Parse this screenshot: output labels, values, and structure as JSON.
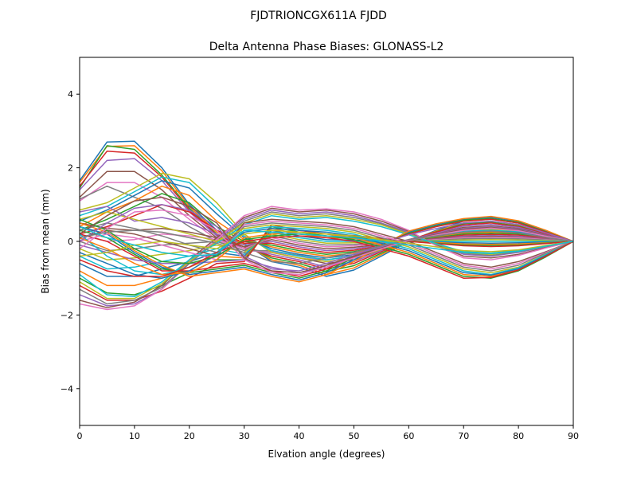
{
  "suptitle": "FJDTRIONCGX611A FJDD",
  "chart_data": {
    "type": "line",
    "title": "Delta Antenna Phase Biases: GLONASS-L2",
    "xlabel": "Elvation angle (degrees)",
    "ylabel": "Bias from mean (mm)",
    "xlim": [
      0,
      90
    ],
    "ylim": [
      -5,
      5
    ],
    "xticks": [
      0,
      10,
      20,
      30,
      40,
      50,
      60,
      70,
      80,
      90
    ],
    "yticks": [
      -4,
      -2,
      0,
      2,
      4
    ],
    "ytick_labels": [
      "−4",
      "−2",
      "0",
      "2",
      "4"
    ],
    "grid": false,
    "x": [
      0,
      5,
      10,
      15,
      20,
      25,
      30,
      35,
      40,
      45,
      50,
      55,
      60,
      65,
      70,
      75,
      80,
      85,
      90
    ],
    "colors": [
      "#1f77b4",
      "#ff7f0e",
      "#2ca02c",
      "#d62728",
      "#9467bd",
      "#8c564b",
      "#e377c2",
      "#7f7f7f",
      "#bcbd22",
      "#17becf"
    ],
    "series": [
      {
        "values": [
          1.65,
          2.7,
          2.72,
          2.0,
          1.0,
          0.3,
          -0.05,
          -0.55,
          -0.7,
          -0.95,
          -0.78,
          -0.4,
          0.0,
          0.3,
          0.55,
          0.6,
          0.5,
          0.25,
          0
        ]
      },
      {
        "values": [
          1.6,
          2.58,
          2.6,
          1.92,
          0.95,
          0.25,
          -0.08,
          -0.5,
          -0.65,
          -0.9,
          -0.72,
          -0.36,
          0.02,
          0.28,
          0.5,
          0.55,
          0.45,
          0.22,
          0
        ]
      },
      {
        "values": [
          1.45,
          2.6,
          2.5,
          1.8,
          0.9,
          0.2,
          -0.1,
          -0.45,
          -0.6,
          -0.82,
          -0.66,
          -0.32,
          0.03,
          0.26,
          0.48,
          0.52,
          0.42,
          0.2,
          0
        ]
      },
      {
        "values": [
          1.5,
          2.45,
          2.4,
          1.75,
          0.85,
          0.18,
          -0.15,
          -0.4,
          -0.55,
          -0.75,
          -0.6,
          -0.28,
          0.05,
          0.25,
          0.45,
          0.5,
          0.4,
          0.2,
          0
        ]
      },
      {
        "values": [
          1.4,
          2.2,
          2.25,
          1.65,
          0.8,
          0.15,
          -0.2,
          -0.35,
          -0.5,
          -0.7,
          -0.55,
          -0.25,
          0.05,
          0.22,
          0.42,
          0.46,
          0.38,
          0.18,
          0
        ]
      },
      {
        "values": [
          1.2,
          1.9,
          1.9,
          1.4,
          0.7,
          0.1,
          -0.2,
          -0.3,
          -0.45,
          -0.6,
          -0.5,
          -0.22,
          0.05,
          0.2,
          0.38,
          0.42,
          0.35,
          0.17,
          0
        ]
      },
      {
        "values": [
          1.1,
          1.6,
          1.6,
          1.2,
          0.6,
          0.05,
          -0.25,
          -0.28,
          -0.4,
          -0.55,
          -0.45,
          -0.2,
          0.04,
          0.18,
          0.35,
          0.38,
          0.32,
          0.15,
          0
        ]
      },
      {
        "values": [
          1.15,
          1.5,
          1.2,
          0.9,
          0.4,
          0.0,
          -0.25,
          -0.25,
          -0.38,
          -0.5,
          -0.4,
          -0.18,
          0.04,
          0.16,
          0.3,
          0.34,
          0.28,
          0.14,
          0
        ]
      },
      {
        "values": [
          0.85,
          1.05,
          1.45,
          1.85,
          1.7,
          1.05,
          0.2,
          -0.3,
          -0.45,
          -0.55,
          -0.45,
          -0.22,
          0.02,
          0.15,
          0.3,
          0.32,
          0.28,
          0.14,
          0
        ]
      },
      {
        "values": [
          0.7,
          0.95,
          1.35,
          1.75,
          1.6,
          0.9,
          0.15,
          -0.25,
          -0.4,
          -0.5,
          -0.4,
          -0.2,
          0.02,
          0.14,
          0.28,
          0.3,
          0.26,
          0.13,
          0
        ]
      },
      {
        "values": [
          0.55,
          0.85,
          1.25,
          1.65,
          1.45,
          0.75,
          0.1,
          -0.2,
          -0.35,
          -0.45,
          -0.36,
          -0.18,
          0.02,
          0.12,
          0.25,
          0.28,
          0.24,
          0.12,
          0
        ]
      },
      {
        "values": [
          0.4,
          0.8,
          1.1,
          1.5,
          1.25,
          0.55,
          0.05,
          -0.15,
          -0.3,
          -0.4,
          -0.32,
          -0.16,
          0.01,
          0.11,
          0.22,
          0.25,
          0.22,
          0.11,
          0
        ]
      },
      {
        "values": [
          0.3,
          0.6,
          0.95,
          1.3,
          1.05,
          0.4,
          0.0,
          -0.1,
          -0.25,
          -0.35,
          -0.28,
          -0.14,
          0.01,
          0.1,
          0.2,
          0.22,
          0.2,
          0.1,
          0
        ]
      },
      {
        "values": [
          0.2,
          0.4,
          0.7,
          1.0,
          0.8,
          0.3,
          -0.05,
          -0.05,
          -0.2,
          -0.3,
          -0.24,
          -0.12,
          0.0,
          0.08,
          0.17,
          0.19,
          0.17,
          0.09,
          0
        ]
      },
      {
        "values": [
          0.8,
          0.95,
          0.55,
          0.65,
          0.5,
          0.2,
          -0.1,
          0.0,
          -0.15,
          -0.25,
          -0.2,
          -0.1,
          0.0,
          0.07,
          0.14,
          0.16,
          0.14,
          0.07,
          0
        ]
      },
      {
        "values": [
          0.5,
          0.35,
          0.3,
          0.35,
          0.25,
          0.1,
          -0.15,
          0.05,
          -0.1,
          -0.2,
          -0.16,
          -0.08,
          0.0,
          0.06,
          0.12,
          0.14,
          0.12,
          0.06,
          0
        ]
      },
      {
        "values": [
          0.2,
          0.0,
          0.05,
          0.2,
          0.15,
          0.05,
          -0.2,
          0.1,
          -0.05,
          -0.15,
          -0.12,
          -0.06,
          0.0,
          0.05,
          0.1,
          0.11,
          0.1,
          0.05,
          0
        ]
      },
      {
        "values": [
          0.0,
          -0.25,
          -0.2,
          -0.1,
          -0.05,
          0.0,
          -0.25,
          0.15,
          0.0,
          -0.1,
          -0.08,
          -0.04,
          0.0,
          0.03,
          0.07,
          0.08,
          0.07,
          0.04,
          0
        ]
      },
      {
        "values": [
          -0.2,
          -0.5,
          -0.45,
          -0.35,
          -0.25,
          -0.1,
          -0.3,
          0.2,
          0.05,
          -0.05,
          -0.04,
          -0.02,
          0.0,
          0.02,
          0.04,
          0.05,
          0.04,
          0.02,
          0
        ]
      },
      {
        "values": [
          -0.4,
          -0.75,
          -0.7,
          -0.55,
          -0.4,
          -0.2,
          -0.35,
          0.25,
          0.1,
          0.0,
          0.0,
          0.0,
          0.0,
          0.0,
          0.0,
          0.0,
          0.0,
          0.0,
          0
        ]
      },
      {
        "values": [
          -0.6,
          -0.95,
          -0.95,
          -0.75,
          -0.55,
          -0.3,
          -0.4,
          0.3,
          0.15,
          0.05,
          0.04,
          0.02,
          0.0,
          -0.02,
          -0.04,
          -0.05,
          -0.04,
          -0.02,
          0
        ]
      },
      {
        "values": [
          -0.8,
          -1.2,
          -1.2,
          -1.0,
          -0.7,
          -0.4,
          -0.45,
          0.35,
          0.2,
          0.1,
          0.08,
          0.04,
          0.0,
          -0.03,
          -0.07,
          -0.08,
          -0.07,
          -0.04,
          0
        ]
      },
      {
        "values": [
          -1.0,
          -1.4,
          -1.45,
          -1.2,
          -0.85,
          -0.5,
          -0.5,
          0.4,
          0.25,
          0.15,
          0.12,
          0.06,
          0.0,
          -0.05,
          -0.1,
          -0.11,
          -0.1,
          -0.05,
          0
        ]
      },
      {
        "values": [
          -1.2,
          -1.6,
          -1.6,
          -1.35,
          -1.0,
          -0.6,
          -0.55,
          0.45,
          0.3,
          0.2,
          0.16,
          0.08,
          0.0,
          -0.06,
          -0.12,
          -0.14,
          -0.12,
          -0.06,
          0
        ]
      },
      {
        "values": [
          -1.45,
          -1.75,
          -1.7,
          -1.3,
          -0.6,
          0.05,
          0.6,
          0.85,
          0.75,
          0.8,
          0.7,
          0.5,
          0.25,
          -0.1,
          -0.35,
          -0.4,
          -0.3,
          -0.15,
          0
        ]
      },
      {
        "values": [
          -1.6,
          -1.8,
          -1.65,
          -1.2,
          -0.5,
          0.1,
          0.65,
          0.9,
          0.8,
          0.85,
          0.75,
          0.55,
          0.28,
          -0.1,
          -0.4,
          -0.45,
          -0.35,
          -0.17,
          0
        ]
      },
      {
        "values": [
          -1.7,
          -1.85,
          -1.75,
          -1.3,
          -0.55,
          0.05,
          0.7,
          0.95,
          0.85,
          0.88,
          0.8,
          0.6,
          0.3,
          -0.12,
          -0.45,
          -0.5,
          -0.38,
          -0.18,
          0
        ]
      },
      {
        "values": [
          -1.3,
          -1.7,
          -1.6,
          -1.25,
          -0.6,
          0.0,
          0.55,
          0.8,
          0.7,
          0.75,
          0.65,
          0.48,
          0.22,
          -0.08,
          -0.32,
          -0.38,
          -0.28,
          -0.14,
          0
        ]
      },
      {
        "values": [
          -1.1,
          -1.55,
          -1.55,
          -1.15,
          -0.55,
          0.0,
          0.5,
          0.75,
          0.65,
          0.7,
          0.6,
          0.45,
          0.2,
          -0.07,
          -0.3,
          -0.35,
          -0.26,
          -0.13,
          0
        ]
      },
      {
        "values": [
          -0.9,
          -1.45,
          -1.5,
          -1.1,
          -0.5,
          -0.05,
          0.45,
          0.7,
          0.6,
          0.65,
          0.55,
          0.4,
          0.18,
          -0.06,
          -0.28,
          -0.32,
          -0.24,
          -0.12,
          0
        ]
      },
      {
        "values": [
          0.4,
          0.2,
          -0.3,
          -0.7,
          -0.9,
          -0.8,
          -0.7,
          -0.9,
          -1.05,
          -0.85,
          -0.5,
          -0.1,
          0.25,
          0.45,
          0.6,
          0.65,
          0.55,
          0.28,
          0
        ]
      },
      {
        "values": [
          0.5,
          0.25,
          -0.25,
          -0.65,
          -0.95,
          -0.85,
          -0.75,
          -0.95,
          -1.1,
          -0.9,
          -0.55,
          -0.12,
          0.28,
          0.48,
          0.62,
          0.68,
          0.56,
          0.3,
          0
        ]
      },
      {
        "values": [
          0.3,
          0.1,
          -0.35,
          -0.75,
          -0.85,
          -0.75,
          -0.65,
          -0.85,
          -1.0,
          -0.8,
          -0.45,
          -0.08,
          0.22,
          0.42,
          0.58,
          0.62,
          0.52,
          0.26,
          0
        ]
      },
      {
        "values": [
          0.2,
          0.0,
          -0.4,
          -0.8,
          -0.8,
          -0.7,
          -0.6,
          -0.8,
          -0.95,
          -0.75,
          -0.42,
          -0.06,
          0.2,
          0.4,
          0.55,
          0.6,
          0.5,
          0.25,
          0
        ]
      },
      {
        "values": [
          -0.1,
          -0.3,
          -0.5,
          -0.6,
          -0.6,
          -0.55,
          -0.5,
          -0.7,
          -0.85,
          -0.7,
          -0.4,
          -0.05,
          0.18,
          0.35,
          0.5,
          0.55,
          0.46,
          0.23,
          0
        ]
      },
      {
        "values": [
          0.1,
          0.3,
          0.2,
          0.0,
          -0.2,
          -0.4,
          0.5,
          0.6,
          0.55,
          0.5,
          0.4,
          0.2,
          0.0,
          -0.3,
          -0.6,
          -0.7,
          -0.55,
          -0.28,
          0
        ]
      },
      {
        "values": [
          0.0,
          0.2,
          0.1,
          -0.1,
          -0.3,
          -0.5,
          0.45,
          0.55,
          0.5,
          0.45,
          0.35,
          0.15,
          -0.05,
          -0.35,
          -0.65,
          -0.75,
          -0.6,
          -0.3,
          0
        ]
      },
      {
        "values": [
          0.3,
          0.5,
          0.35,
          0.15,
          -0.1,
          -0.3,
          0.4,
          0.5,
          0.45,
          0.4,
          0.3,
          0.1,
          -0.1,
          -0.4,
          -0.7,
          -0.8,
          -0.65,
          -0.32,
          0
        ]
      },
      {
        "values": [
          0.6,
          0.8,
          0.6,
          0.4,
          0.2,
          0.0,
          0.35,
          0.45,
          0.4,
          0.35,
          0.25,
          0.05,
          -0.15,
          -0.45,
          -0.75,
          -0.85,
          -0.7,
          -0.35,
          0
        ]
      },
      {
        "values": [
          0.2,
          -0.4,
          -0.8,
          -0.9,
          -0.7,
          -0.3,
          0.3,
          0.4,
          0.35,
          0.3,
          0.2,
          0.0,
          -0.2,
          -0.5,
          -0.8,
          -0.9,
          -0.72,
          -0.36,
          0
        ]
      },
      {
        "values": [
          -0.3,
          -0.6,
          -0.9,
          -1.0,
          -0.8,
          -0.35,
          0.25,
          0.35,
          0.3,
          0.25,
          0.15,
          -0.05,
          -0.25,
          -0.55,
          -0.85,
          -0.92,
          -0.75,
          -0.38,
          0
        ]
      },
      {
        "values": [
          0.1,
          -0.2,
          -0.6,
          -0.9,
          -0.85,
          -0.5,
          0.1,
          0.2,
          0.25,
          0.2,
          0.1,
          -0.1,
          -0.3,
          -0.6,
          -0.9,
          -0.95,
          -0.78,
          -0.4,
          0
        ]
      },
      {
        "values": [
          0.6,
          0.3,
          -0.2,
          -0.55,
          -0.6,
          -0.4,
          0.05,
          0.15,
          0.2,
          0.15,
          0.05,
          -0.15,
          -0.35,
          -0.65,
          -0.95,
          -1.0,
          -0.8,
          -0.42,
          0
        ]
      },
      {
        "values": [
          -0.5,
          -0.8,
          -0.95,
          -0.95,
          -0.7,
          -0.3,
          0.0,
          0.1,
          0.15,
          0.1,
          0.0,
          -0.2,
          -0.4,
          -0.7,
          -1.0,
          -0.98,
          -0.78,
          -0.4,
          0
        ]
      },
      {
        "values": [
          0.0,
          0.5,
          0.9,
          1.0,
          0.85,
          0.4,
          -0.4,
          -0.75,
          -0.8,
          -0.6,
          -0.35,
          -0.15,
          0.05,
          0.2,
          0.35,
          0.4,
          0.33,
          0.16,
          0
        ]
      },
      {
        "values": [
          0.2,
          0.7,
          1.1,
          1.2,
          0.95,
          0.5,
          -0.45,
          -0.8,
          -0.85,
          -0.65,
          -0.4,
          -0.18,
          0.04,
          0.19,
          0.33,
          0.38,
          0.31,
          0.15,
          0
        ]
      },
      {
        "values": [
          -0.2,
          0.35,
          0.8,
          0.85,
          0.7,
          0.3,
          -0.5,
          -0.85,
          -0.9,
          -0.7,
          -0.45,
          -0.2,
          0.03,
          0.17,
          0.3,
          0.36,
          0.29,
          0.14,
          0
        ]
      },
      {
        "values": [
          0.1,
          0.25,
          0.3,
          0.25,
          0.1,
          -0.05,
          -0.3,
          -0.55,
          -0.6,
          -0.45,
          -0.3,
          -0.12,
          0.05,
          0.15,
          0.25,
          0.28,
          0.23,
          0.11,
          0
        ]
      },
      {
        "values": [
          -0.4,
          -0.3,
          -0.1,
          0.0,
          -0.1,
          -0.2,
          0.2,
          0.3,
          0.25,
          0.2,
          0.15,
          0.05,
          -0.05,
          -0.15,
          -0.25,
          -0.28,
          -0.23,
          -0.11,
          0
        ]
      },
      {
        "values": [
          0.4,
          0.1,
          -0.1,
          -0.3,
          -0.4,
          -0.35,
          0.3,
          0.25,
          0.2,
          0.15,
          0.1,
          0.0,
          -0.1,
          -0.2,
          -0.3,
          -0.33,
          -0.27,
          -0.13,
          0
        ]
      }
    ]
  }
}
